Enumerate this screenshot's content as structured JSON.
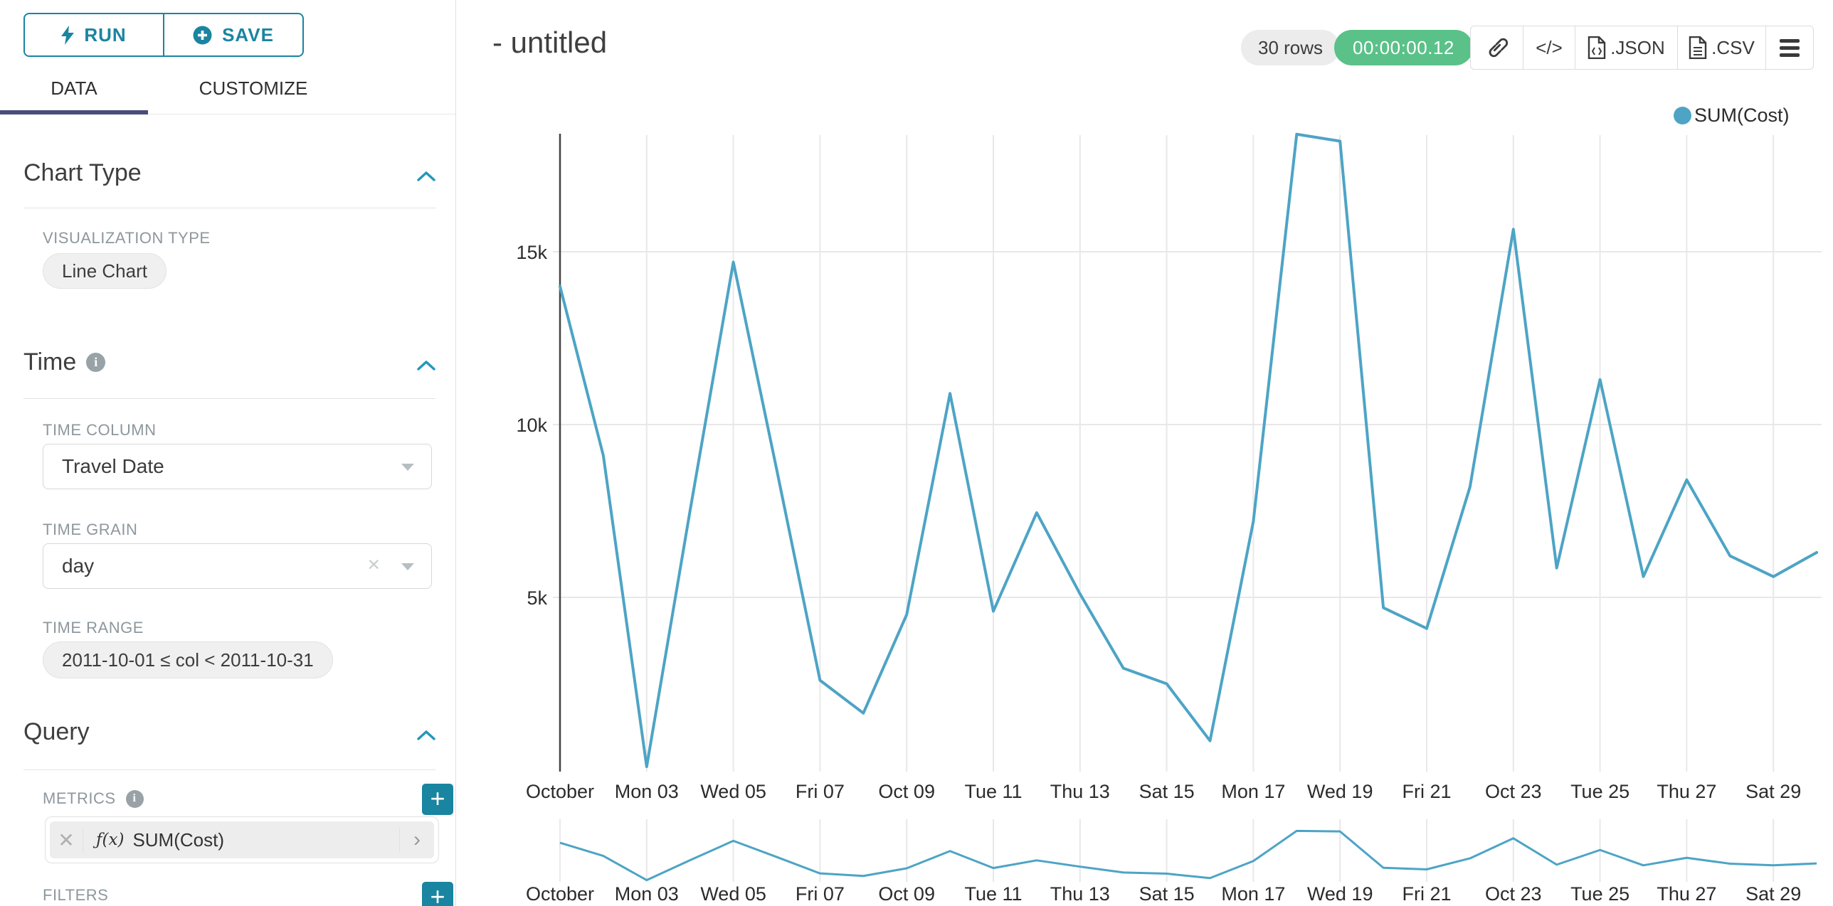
{
  "app": {
    "accent_teal": "#1985a0",
    "line_color": "#4DA4C5",
    "success_green": "#5ac189",
    "tab_underline_color": "#484d7c"
  },
  "panel": {
    "run_label": "RUN",
    "save_label": "SAVE",
    "tabs": {
      "data": "DATA",
      "customize": "CUSTOMIZE"
    },
    "chart_type_section": {
      "title": "Chart Type",
      "visualization_type_label": "VISUALIZATION TYPE",
      "visualization_type_value": "Line Chart"
    },
    "time_section": {
      "title": "Time",
      "time_column_label": "TIME COLUMN",
      "time_column_value": "Travel Date",
      "time_grain_label": "TIME GRAIN",
      "time_grain_value": "day",
      "time_range_label": "TIME RANGE",
      "time_range_value": "2011-10-01 ≤ col < 2011-10-31"
    },
    "query_section": {
      "title": "Query",
      "metrics_label": "METRICS",
      "metric_fx": "ƒ(x)",
      "metric_value": "SUM(Cost)",
      "filters_label": "FILTERS"
    }
  },
  "header": {
    "title": "- untitled",
    "rows_badge": "30 rows",
    "timer_badge": "00:00:00.12",
    "code_icon_label": "</>",
    "json_label": ".JSON",
    "csv_label": ".CSV"
  },
  "chart_data": {
    "type": "line",
    "title": "",
    "legend_position": "top-right",
    "grid": true,
    "has_range_selector_minichart": true,
    "legend": [
      {
        "name": "SUM(Cost)",
        "color": "#4DA4C5"
      }
    ],
    "x": [
      "2011-10-01",
      "2011-10-02",
      "2011-10-03",
      "2011-10-04",
      "2011-10-05",
      "2011-10-06",
      "2011-10-07",
      "2011-10-08",
      "2011-10-09",
      "2011-10-10",
      "2011-10-11",
      "2011-10-12",
      "2011-10-13",
      "2011-10-14",
      "2011-10-15",
      "2011-10-16",
      "2011-10-17",
      "2011-10-18",
      "2011-10-19",
      "2011-10-20",
      "2011-10-21",
      "2011-10-22",
      "2011-10-23",
      "2011-10-24",
      "2011-10-25",
      "2011-10-26",
      "2011-10-27",
      "2011-10-28",
      "2011-10-29",
      "2011-10-30"
    ],
    "series": [
      {
        "name": "SUM(Cost)",
        "values": [
          14000,
          9100,
          100,
          7500,
          14700,
          8700,
          2600,
          1650,
          4500,
          10900,
          4600,
          7450,
          5100,
          2950,
          2500,
          850,
          7200,
          18400,
          18200,
          4700,
          4100,
          8200,
          15650,
          5850,
          11300,
          5600,
          8400,
          6200,
          5600,
          6300
        ]
      }
    ],
    "x_tick_labels": [
      "October",
      "Mon 03",
      "Wed 05",
      "Fri 07",
      "Oct 09",
      "Tue 11",
      "Thu 13",
      "Sat 15",
      "Mon 17",
      "Wed 19",
      "Fri 21",
      "Oct 23",
      "Tue 25",
      "Thu 27",
      "Sat 29"
    ],
    "y_ticks": [
      {
        "label": "5k",
        "value": 5000
      },
      {
        "label": "10k",
        "value": 10000
      },
      {
        "label": "15k",
        "value": 15000
      }
    ],
    "ylim": [
      0,
      18500
    ],
    "xlabel": "",
    "ylabel": ""
  }
}
